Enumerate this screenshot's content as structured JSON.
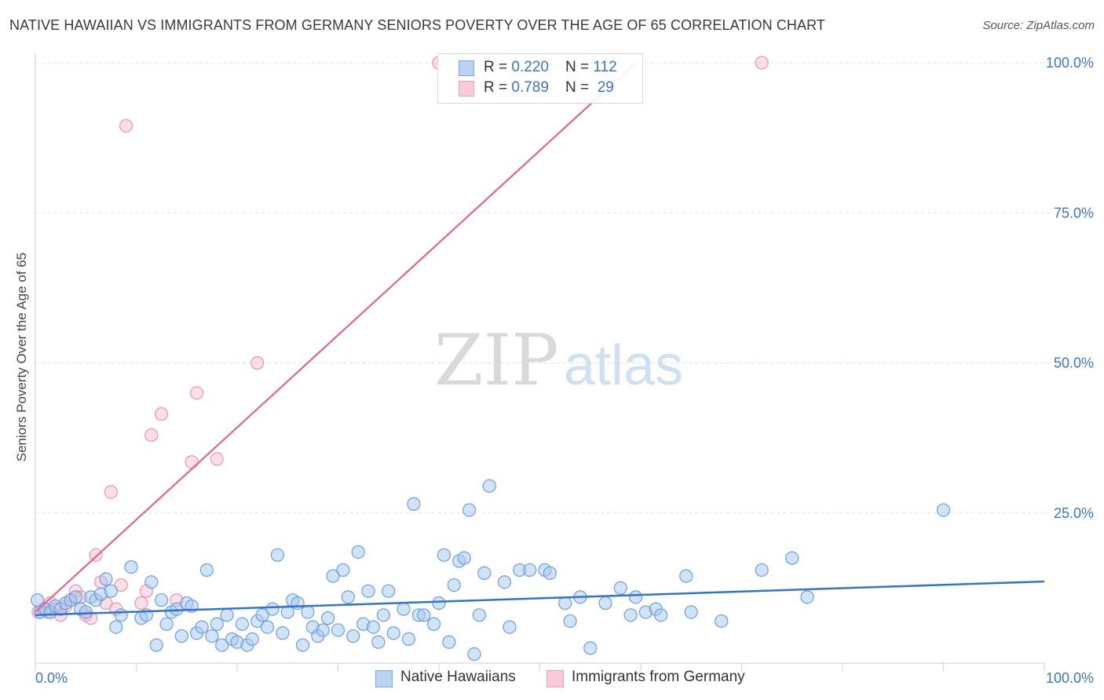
{
  "header": {
    "title": "NATIVE HAWAIIAN VS IMMIGRANTS FROM GERMANY SENIORS POVERTY OVER THE AGE OF 65 CORRELATION CHART",
    "source": "Source: ZipAtlas.com"
  },
  "watermark": {
    "zip": "ZIP",
    "atlas": "atlas"
  },
  "legend_top": {
    "rows": [
      {
        "r_label": "R = ",
        "r_value": "0.220",
        "n_label": "N = ",
        "n_value": "112"
      },
      {
        "r_label": "R = ",
        "r_value": "0.789",
        "n_label": "N = ",
        "n_value": " 29"
      }
    ]
  },
  "legend_bottom": {
    "items": [
      {
        "label": "Native Hawaiians"
      },
      {
        "label": "Immigrants from Germany"
      }
    ]
  },
  "colors": {
    "blue_fill": "#a8c8f0",
    "blue_stroke": "#6a9fe0",
    "blue_line": "#2f74d0",
    "pink_fill": "#f5b8ca",
    "pink_stroke": "#ee93b0",
    "pink_line": "#e8628a",
    "tick_label": "#3a74c9",
    "grid": "#dde3ea"
  },
  "chart_data": {
    "type": "scatter",
    "title": "NATIVE HAWAIIAN VS IMMIGRANTS FROM GERMANY SENIORS POVERTY OVER THE AGE OF 65 CORRELATION CHART",
    "xlabel": "",
    "ylabel": "Seniors Poverty Over the Age of 65",
    "xlim": [
      0,
      100
    ],
    "ylim": [
      0,
      100
    ],
    "x_tick_labels": [
      "0.0%",
      "100.0%"
    ],
    "y_ticks": [
      25,
      50,
      75,
      100
    ],
    "y_tick_labels": [
      "25.0%",
      "50.0%",
      "75.0%",
      "100.0%"
    ],
    "grid": true,
    "legend_position": "top-center",
    "series": [
      {
        "name": "Native Hawaiians",
        "color": "#6a9fe0",
        "trend": {
          "x": [
            0,
            100
          ],
          "y": [
            8.0,
            13.6
          ]
        },
        "points": [
          [
            0.2,
            10.5
          ],
          [
            0.5,
            8.5
          ],
          [
            1.0,
            9.0
          ],
          [
            1.5,
            8.5
          ],
          [
            2.0,
            9.5
          ],
          [
            2.5,
            9.0
          ],
          [
            3.0,
            10.0
          ],
          [
            3.5,
            10.5
          ],
          [
            4.0,
            11.0
          ],
          [
            4.5,
            9.0
          ],
          [
            5.0,
            8.5
          ],
          [
            5.5,
            11.0
          ],
          [
            6.0,
            10.5
          ],
          [
            6.5,
            11.5
          ],
          [
            7.0,
            14.0
          ],
          [
            7.5,
            12.0
          ],
          [
            8.0,
            6.0
          ],
          [
            8.5,
            8.0
          ],
          [
            9.5,
            16.0
          ],
          [
            10.5,
            7.5
          ],
          [
            11.0,
            8.0
          ],
          [
            11.5,
            13.5
          ],
          [
            12.0,
            3.0
          ],
          [
            12.5,
            10.5
          ],
          [
            13.0,
            6.5
          ],
          [
            13.5,
            8.5
          ],
          [
            14.0,
            9.0
          ],
          [
            14.5,
            4.5
          ],
          [
            15.0,
            10.0
          ],
          [
            15.5,
            9.5
          ],
          [
            16.0,
            5.0
          ],
          [
            16.5,
            6.0
          ],
          [
            17.0,
            15.5
          ],
          [
            17.5,
            4.5
          ],
          [
            18.0,
            6.5
          ],
          [
            18.5,
            3.0
          ],
          [
            19.0,
            8.0
          ],
          [
            19.5,
            4.0
          ],
          [
            20.0,
            3.5
          ],
          [
            20.5,
            6.5
          ],
          [
            21.0,
            3.0
          ],
          [
            21.5,
            4.0
          ],
          [
            22.0,
            7.0
          ],
          [
            22.5,
            8.0
          ],
          [
            23.0,
            6.0
          ],
          [
            23.5,
            9.0
          ],
          [
            24.0,
            18.0
          ],
          [
            24.5,
            5.0
          ],
          [
            25.0,
            8.5
          ],
          [
            25.5,
            10.5
          ],
          [
            26.0,
            10.0
          ],
          [
            26.5,
            3.0
          ],
          [
            27.0,
            8.5
          ],
          [
            27.5,
            6.0
          ],
          [
            28.0,
            4.5
          ],
          [
            28.5,
            5.5
          ],
          [
            29.0,
            7.5
          ],
          [
            29.5,
            14.5
          ],
          [
            30.0,
            5.5
          ],
          [
            30.5,
            15.5
          ],
          [
            31.0,
            11.0
          ],
          [
            31.5,
            4.5
          ],
          [
            32.0,
            18.5
          ],
          [
            32.5,
            6.5
          ],
          [
            33.0,
            12.0
          ],
          [
            33.5,
            6.0
          ],
          [
            34.0,
            3.5
          ],
          [
            34.5,
            8.0
          ],
          [
            35.0,
            12.0
          ],
          [
            35.5,
            5.0
          ],
          [
            36.5,
            9.0
          ],
          [
            37.0,
            4.0
          ],
          [
            37.5,
            26.5
          ],
          [
            38.0,
            8.0
          ],
          [
            38.5,
            8.0
          ],
          [
            39.5,
            6.5
          ],
          [
            40.0,
            10.0
          ],
          [
            40.5,
            18.0
          ],
          [
            41.0,
            3.5
          ],
          [
            41.5,
            13.0
          ],
          [
            42.0,
            17.0
          ],
          [
            42.5,
            17.5
          ],
          [
            43.0,
            25.5
          ],
          [
            43.5,
            1.5
          ],
          [
            44.0,
            8.0
          ],
          [
            44.5,
            15.0
          ],
          [
            45.0,
            29.5
          ],
          [
            46.5,
            13.5
          ],
          [
            47.0,
            6.0
          ],
          [
            48.0,
            15.5
          ],
          [
            49.0,
            15.5
          ],
          [
            50.5,
            15.5
          ],
          [
            51.0,
            15.0
          ],
          [
            52.5,
            10.0
          ],
          [
            53.0,
            7.0
          ],
          [
            54.0,
            11.0
          ],
          [
            55.0,
            2.5
          ],
          [
            56.5,
            10.0
          ],
          [
            58.0,
            12.5
          ],
          [
            59.0,
            8.0
          ],
          [
            59.5,
            11.0
          ],
          [
            60.5,
            8.5
          ],
          [
            61.5,
            9.0
          ],
          [
            62.0,
            8.0
          ],
          [
            64.5,
            14.5
          ],
          [
            65.0,
            8.5
          ],
          [
            68.0,
            7.0
          ],
          [
            72.0,
            15.5
          ],
          [
            75.0,
            17.5
          ],
          [
            76.5,
            11.0
          ],
          [
            90.0,
            25.5
          ]
        ]
      },
      {
        "name": "Immigrants from Germany",
        "color": "#ee93b0",
        "trend": {
          "x": [
            0,
            59.5
          ],
          "y": [
            8.5,
            100
          ]
        },
        "points": [
          [
            0.3,
            8.5
          ],
          [
            0.8,
            9.0
          ],
          [
            1.2,
            8.5
          ],
          [
            1.5,
            10.0
          ],
          [
            2.0,
            9.0
          ],
          [
            2.5,
            8.0
          ],
          [
            3.0,
            9.5
          ],
          [
            3.5,
            10.5
          ],
          [
            4.0,
            12.0
          ],
          [
            4.5,
            11.0
          ],
          [
            5.0,
            8.0
          ],
          [
            5.5,
            7.5
          ],
          [
            6.0,
            18.0
          ],
          [
            6.5,
            13.5
          ],
          [
            7.0,
            10.0
          ],
          [
            7.5,
            28.5
          ],
          [
            8.0,
            9.0
          ],
          [
            8.5,
            13.0
          ],
          [
            9.0,
            89.5
          ],
          [
            10.5,
            10.0
          ],
          [
            11.0,
            12.0
          ],
          [
            11.5,
            38.0
          ],
          [
            12.5,
            41.5
          ],
          [
            14.0,
            10.5
          ],
          [
            15.5,
            33.5
          ],
          [
            16.0,
            45.0
          ],
          [
            18.0,
            34.0
          ],
          [
            22.0,
            50.0
          ],
          [
            40.0,
            100.0
          ],
          [
            72.0,
            100.0
          ]
        ]
      }
    ]
  }
}
